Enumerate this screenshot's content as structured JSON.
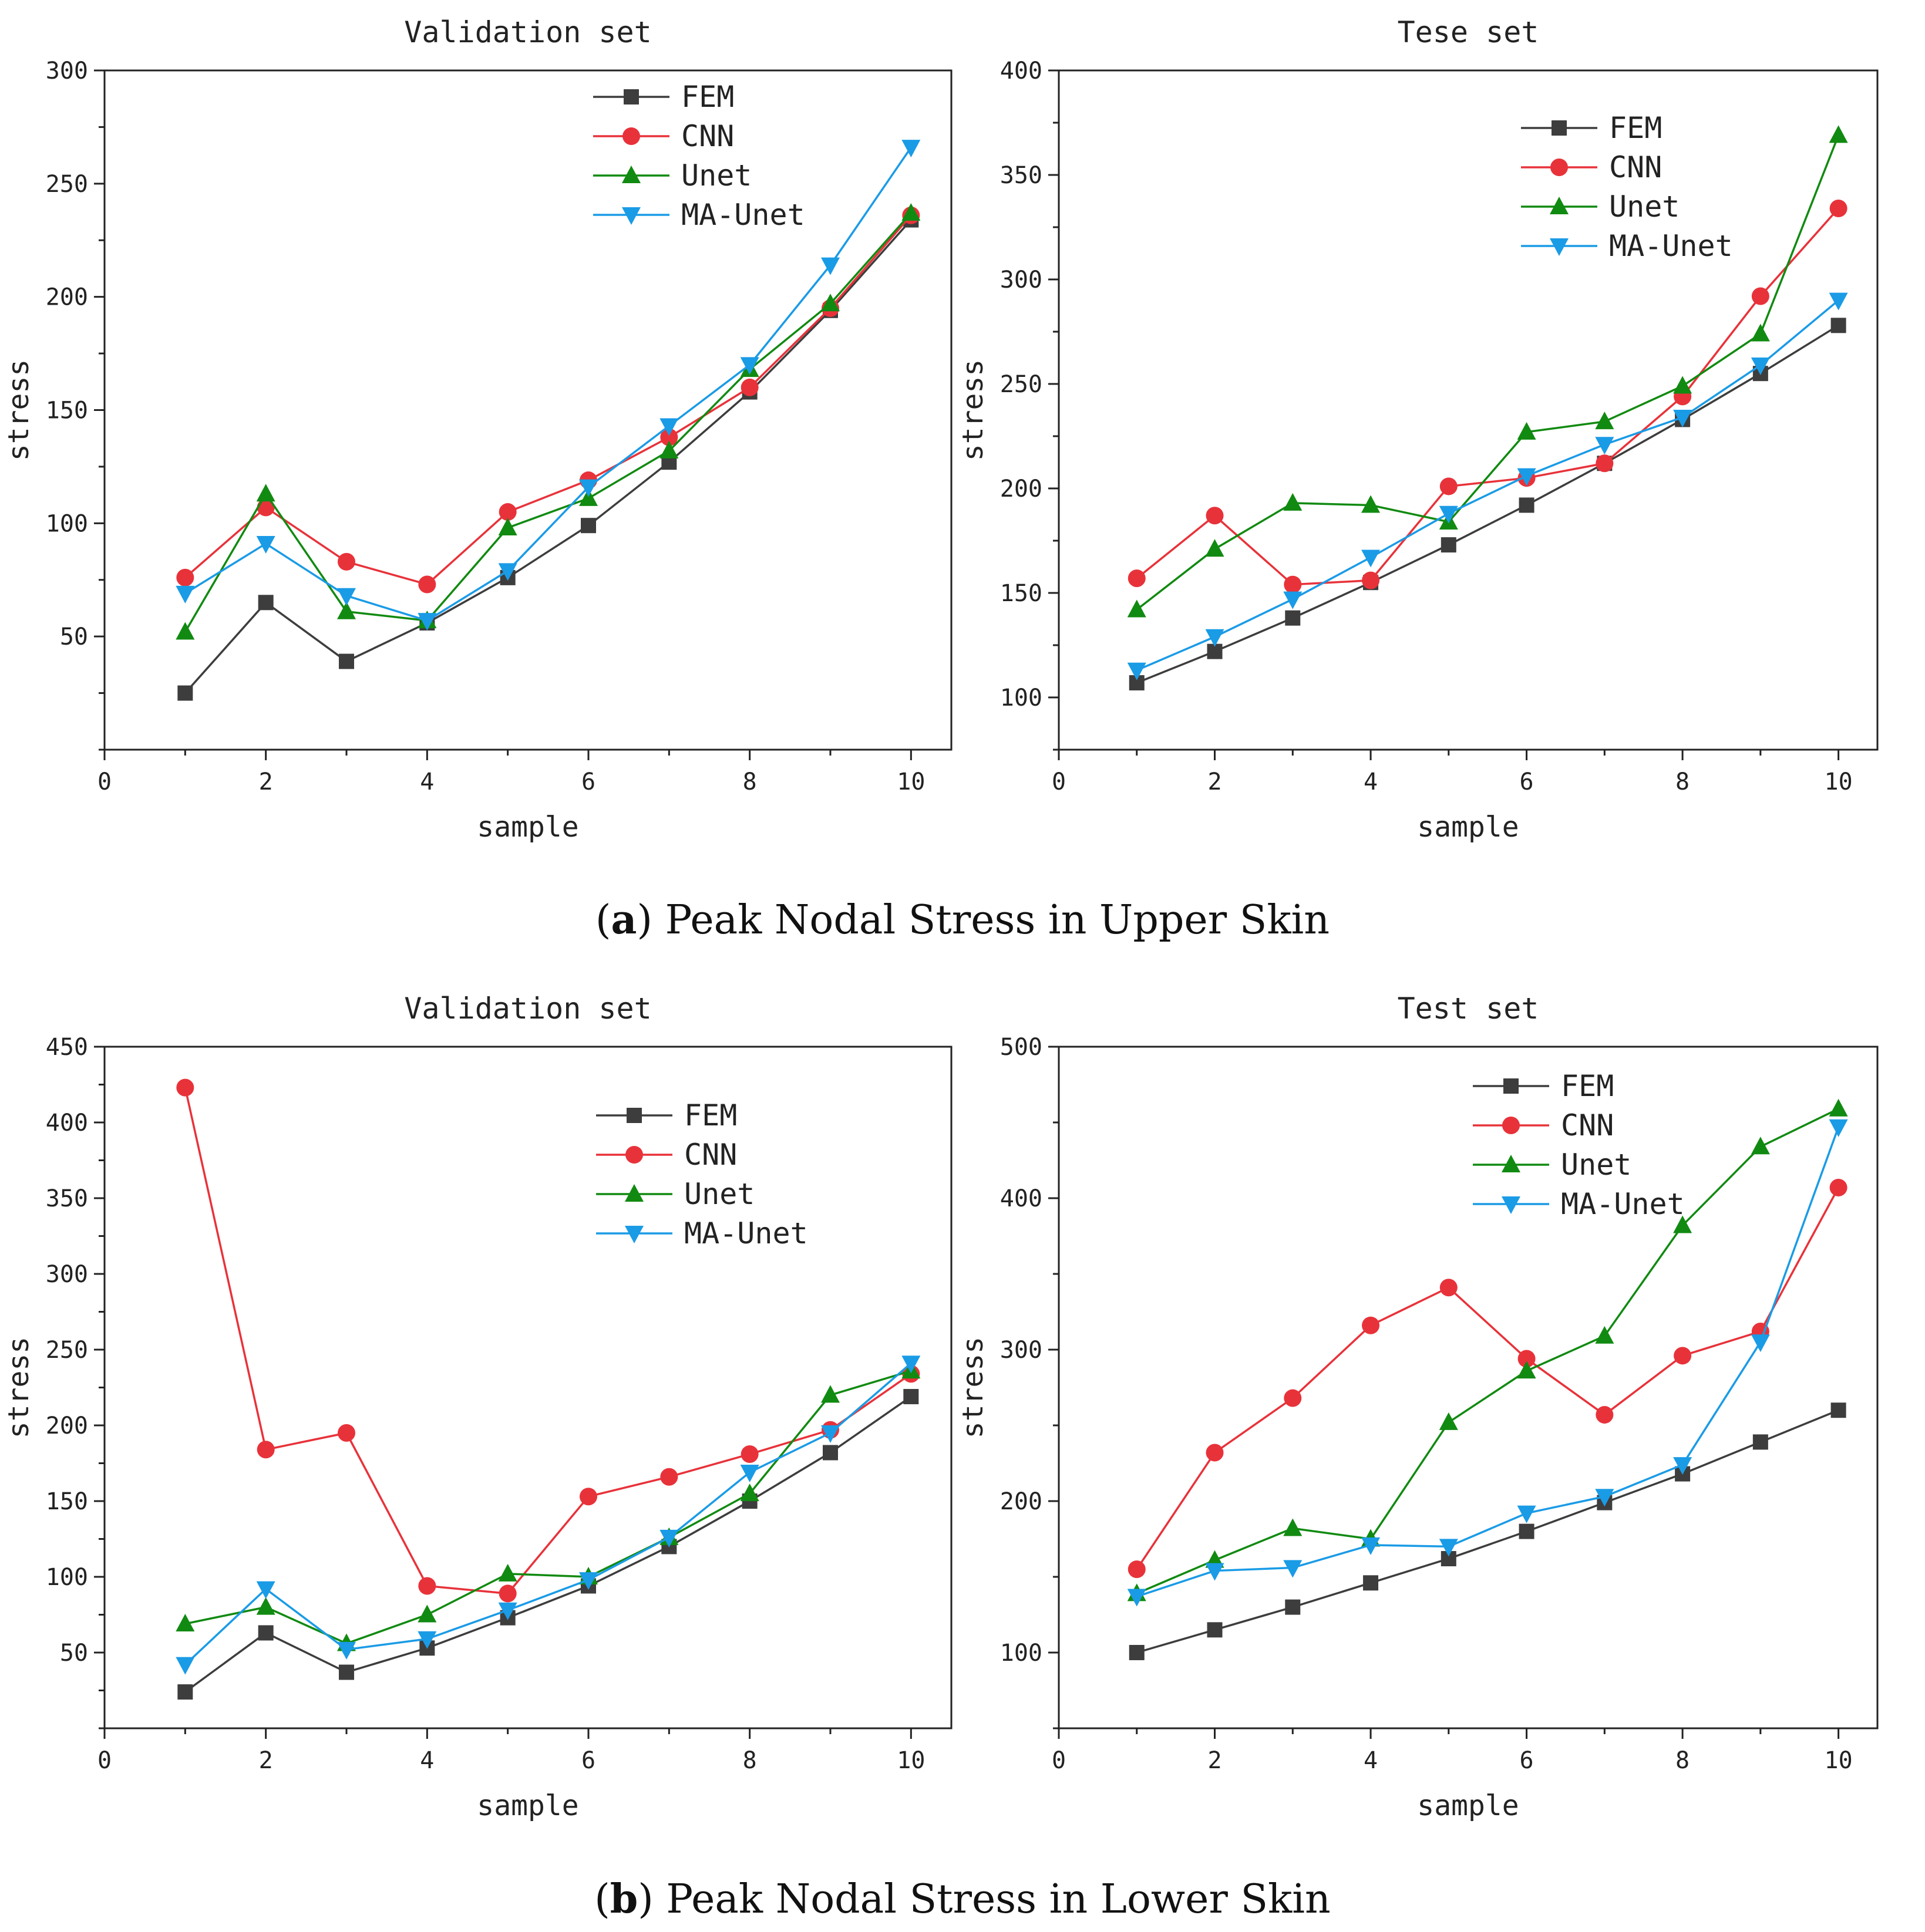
{
  "captions": [
    {
      "open": "(",
      "letter": "a",
      "text": ") Peak Nodal Stress in Upper Skin"
    },
    {
      "open": "(",
      "letter": "b",
      "text": ") Peak Nodal Stress in Lower Skin"
    }
  ],
  "colors": {
    "FEM": "#3d3d3d",
    "CNN": "#e8323a",
    "Unet": "#118a11",
    "MA-Unet": "#1a9be6"
  },
  "chart_data": [
    {
      "type": "line",
      "title": "Validation set",
      "xlabel": "sample",
      "ylabel": "stress",
      "xlim": [
        0,
        10.5
      ],
      "ylim": [
        0,
        300
      ],
      "xticks": [
        0,
        2,
        4,
        6,
        8,
        10
      ],
      "yticks": [
        50,
        100,
        150,
        200,
        250,
        300
      ],
      "legend_position": "top-right",
      "x": [
        1,
        2,
        3,
        4,
        5,
        6,
        7,
        8,
        9,
        10
      ],
      "series": [
        {
          "name": "FEM",
          "marker": "square",
          "values": [
            25,
            65,
            39,
            56,
            76,
            99,
            127,
            158,
            194,
            234
          ]
        },
        {
          "name": "CNN",
          "marker": "circle",
          "values": [
            76,
            107,
            83,
            73,
            105,
            119,
            138,
            160,
            195,
            236
          ]
        },
        {
          "name": "Unet",
          "marker": "triangle-up",
          "values": [
            52,
            113,
            61,
            57,
            98,
            111,
            132,
            168,
            197,
            237
          ]
        },
        {
          "name": "MA-Unet",
          "marker": "triangle-down",
          "values": [
            69,
            91,
            68,
            57,
            79,
            116,
            143,
            170,
            214,
            266
          ]
        }
      ]
    },
    {
      "type": "line",
      "title": "Tese set",
      "xlabel": "sample",
      "ylabel": "stress",
      "xlim": [
        0,
        10.5
      ],
      "ylim": [
        75,
        400
      ],
      "xticks": [
        0,
        2,
        4,
        6,
        8,
        10
      ],
      "yticks": [
        100,
        150,
        200,
        250,
        300,
        350,
        400
      ],
      "legend_position": "top-right",
      "x": [
        1,
        2,
        3,
        4,
        5,
        6,
        7,
        8,
        9,
        10
      ],
      "series": [
        {
          "name": "FEM",
          "marker": "square",
          "values": [
            107,
            122,
            138,
            155,
            173,
            192,
            212,
            233,
            255,
            278
          ]
        },
        {
          "name": "CNN",
          "marker": "circle",
          "values": [
            157,
            187,
            154,
            156,
            201,
            205,
            212,
            244,
            292,
            334
          ]
        },
        {
          "name": "Unet",
          "marker": "triangle-up",
          "values": [
            142,
            171,
            193,
            192,
            184,
            227,
            232,
            249,
            274,
            369
          ]
        },
        {
          "name": "MA-Unet",
          "marker": "triangle-down",
          "values": [
            113,
            129,
            147,
            167,
            188,
            206,
            221,
            234,
            259,
            290
          ]
        }
      ]
    },
    {
      "type": "line",
      "title": "Validation set",
      "xlabel": "sample",
      "ylabel": "stress",
      "xlim": [
        0,
        10.5
      ],
      "ylim": [
        0,
        450
      ],
      "xticks": [
        0,
        2,
        4,
        6,
        8,
        10
      ],
      "yticks": [
        50,
        100,
        150,
        200,
        250,
        300,
        350,
        400,
        450
      ],
      "legend_position": "top-right",
      "x": [
        1,
        2,
        3,
        4,
        5,
        6,
        7,
        8,
        9,
        10
      ],
      "series": [
        {
          "name": "FEM",
          "marker": "square",
          "values": [
            24,
            63,
            37,
            53,
            73,
            94,
            120,
            150,
            182,
            219
          ]
        },
        {
          "name": "CNN",
          "marker": "circle",
          "values": [
            423,
            184,
            195,
            94,
            89,
            153,
            166,
            181,
            197,
            234
          ]
        },
        {
          "name": "Unet",
          "marker": "triangle-up",
          "values": [
            69,
            80,
            56,
            75,
            102,
            100,
            126,
            155,
            220,
            236
          ]
        },
        {
          "name": "MA-Unet",
          "marker": "triangle-down",
          "values": [
            42,
            92,
            52,
            59,
            78,
            98,
            126,
            169,
            195,
            241
          ]
        }
      ]
    },
    {
      "type": "line",
      "title": "Test set",
      "xlabel": "sample",
      "ylabel": "stress",
      "xlim": [
        0,
        10.5
      ],
      "ylim": [
        50,
        500
      ],
      "xticks": [
        0,
        2,
        4,
        6,
        8,
        10
      ],
      "yticks": [
        100,
        200,
        300,
        400,
        500
      ],
      "legend_position": "top-right",
      "x": [
        1,
        2,
        3,
        4,
        5,
        6,
        7,
        8,
        9,
        10
      ],
      "series": [
        {
          "name": "FEM",
          "marker": "square",
          "values": [
            100,
            115,
            130,
            146,
            162,
            180,
            199,
            218,
            239,
            260
          ]
        },
        {
          "name": "CNN",
          "marker": "circle",
          "values": [
            155,
            232,
            268,
            316,
            341,
            294,
            257,
            296,
            312,
            407
          ]
        },
        {
          "name": "Unet",
          "marker": "triangle-up",
          "values": [
            139,
            161,
            182,
            175,
            252,
            286,
            309,
            382,
            434,
            459
          ]
        },
        {
          "name": "MA-Unet",
          "marker": "triangle-down",
          "values": [
            137,
            154,
            156,
            171,
            170,
            192,
            203,
            224,
            305,
            447
          ]
        }
      ]
    }
  ]
}
